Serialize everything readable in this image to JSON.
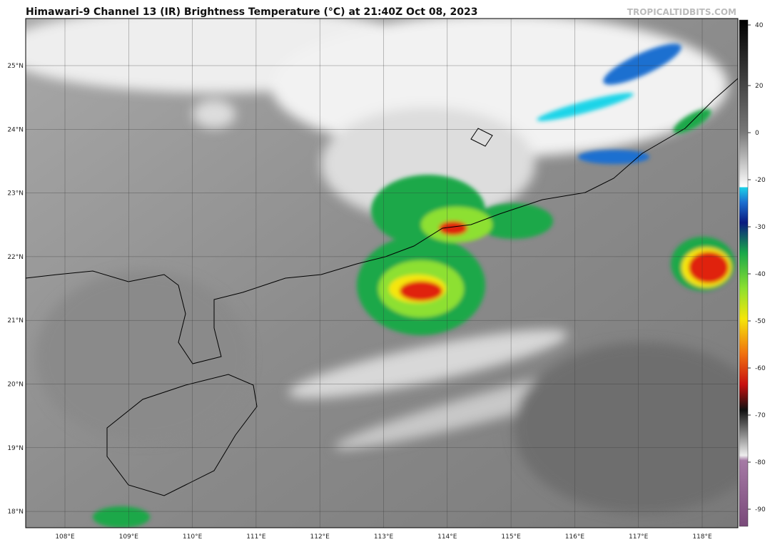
{
  "header": {
    "title": "Himawari-9 Channel 13 (IR) Brightness Temperature (°C) at 21:40Z Oct 08, 2023",
    "source": "TROPICALTIDBITS.COM"
  },
  "map": {
    "latitudes": [
      "25°N",
      "24°N",
      "23°N",
      "22°N",
      "21°N",
      "20°N",
      "19°N",
      "18°N"
    ],
    "longitudes": [
      "108°E",
      "109°E",
      "110°E",
      "111°E",
      "112°E",
      "113°E",
      "114°E",
      "115°E",
      "116°E",
      "117°E",
      "118°E"
    ]
  },
  "colorbar": {
    "labels": [
      "40",
      "20",
      "0",
      "-20",
      "-30",
      "-40",
      "-50",
      "-60",
      "-70",
      "-80",
      "-90"
    ]
  }
}
